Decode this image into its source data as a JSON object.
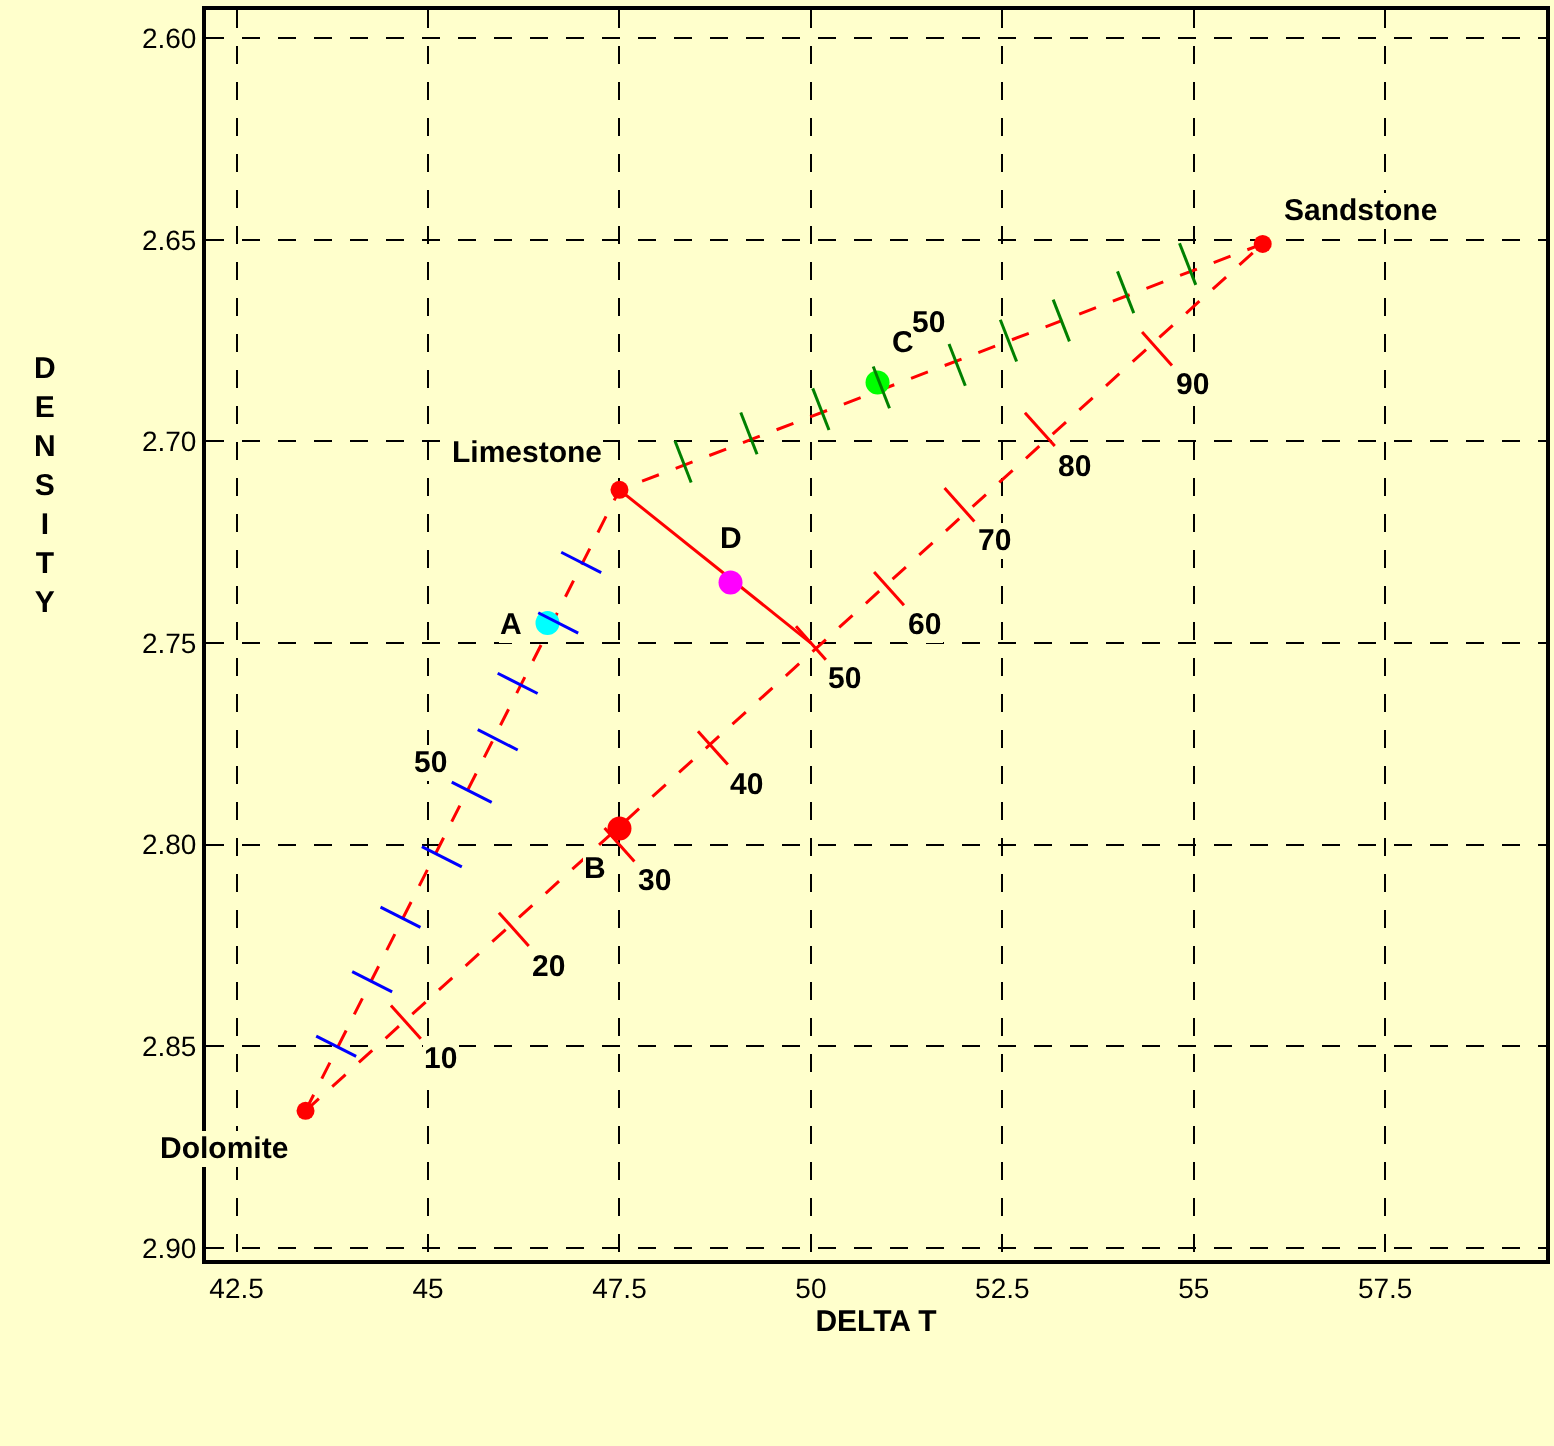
{
  "chart_data": {
    "type": "scatter",
    "xlabel": "DELTA T",
    "ylabel": "DENSITY",
    "xlim": [
      42.1,
      59.6
    ],
    "ylim": [
      2.903,
      2.593
    ],
    "xticks": [
      42.5,
      45,
      47.5,
      50,
      52.5,
      55,
      57.5
    ],
    "yticks": [
      {
        "value": 2.6,
        "label": "2.60"
      },
      {
        "value": 2.65,
        "label": "2.65"
      },
      {
        "value": 2.7,
        "label": "2.70"
      },
      {
        "value": 2.75,
        "label": "2.75"
      },
      {
        "value": 2.8,
        "label": "2.80"
      },
      {
        "value": 2.85,
        "label": "2.85"
      },
      {
        "value": 2.9,
        "label": "2.90"
      }
    ],
    "grid": true,
    "series": [
      {
        "type": "line",
        "color": "#ff0000",
        "line_style": "dashed",
        "marker": "none",
        "x": [
          43.4,
          55.9
        ],
        "values": [
          2.866,
          2.651
        ]
      },
      {
        "type": "line",
        "color": "#ff0000",
        "line_style": "dashed",
        "marker": "none",
        "x": [
          43.4,
          47.5,
          55.9
        ],
        "values": [
          2.866,
          2.712,
          2.651
        ]
      },
      {
        "type": "line",
        "color": "#ff0000",
        "line_style": "solid",
        "marker": "none",
        "x": [
          47.5,
          50.0
        ],
        "values": [
          2.712,
          2.75
        ]
      },
      {
        "color": "#ff0000",
        "marker": "circle",
        "x": [
          43.4,
          47.5,
          55.9
        ],
        "values": [
          2.866,
          2.712,
          2.651
        ]
      },
      {
        "marker": "circle",
        "colors": [
          "#00ffff",
          "#ff0000",
          "#00ff00",
          "#ff00ff"
        ],
        "x": [
          46.56,
          47.5,
          50.87,
          48.95
        ],
        "values": [
          2.745,
          2.796,
          2.6854,
          2.735
        ]
      },
      {
        "color": "#ff0000",
        "marker": "cross",
        "x": [
          44.71,
          46.12,
          47.5,
          48.72,
          50.0,
          51.02,
          51.94,
          52.99,
          54.52
        ],
        "values": [
          2.844,
          2.821,
          2.8,
          2.776,
          2.75,
          2.7365,
          2.7157,
          2.697,
          2.677
        ]
      },
      {
        "color": "#008000",
        "marker": "cross",
        "x": [
          48.33,
          49.19,
          50.13,
          50.92,
          51.91,
          52.58,
          53.27,
          54.11,
          54.92
        ],
        "values": [
          2.705,
          2.698,
          2.692,
          2.6866,
          2.681,
          2.675,
          2.67,
          2.663,
          2.656
        ]
      },
      {
        "color": "#0000ff",
        "marker": "cross",
        "x": [
          43.8,
          44.27,
          44.64,
          45.18,
          45.57,
          45.91,
          46.17,
          46.7,
          47.0
        ],
        "values": [
          2.85,
          2.834,
          2.818,
          2.803,
          2.787,
          2.774,
          2.76,
          2.745,
          2.73
        ]
      }
    ],
    "annotations": [
      {
        "text": "Dolomite",
        "x": 43.4,
        "y": 2.866
      },
      {
        "text": "Limestone",
        "x": 47.5,
        "y": 2.712
      },
      {
        "text": "Sandstone",
        "x": 55.9,
        "y": 2.651
      },
      {
        "text": "A",
        "x": 46.56,
        "y": 2.745
      },
      {
        "text": "B",
        "x": 47.5,
        "y": 2.796
      },
      {
        "text": "C",
        "x": 50.87,
        "y": 2.6854
      },
      {
        "text": "D",
        "x": 48.95,
        "y": 2.735
      },
      {
        "text": "10",
        "x": 44.71,
        "y": 2.844
      },
      {
        "text": "20",
        "x": 46.12,
        "y": 2.821
      },
      {
        "text": "30",
        "x": 47.5,
        "y": 2.8
      },
      {
        "text": "40",
        "x": 48.72,
        "y": 2.776
      },
      {
        "text": "50",
        "x": 50.0,
        "y": 2.75
      },
      {
        "text": "60",
        "x": 51.02,
        "y": 2.7365
      },
      {
        "text": "70",
        "x": 51.94,
        "y": 2.7157
      },
      {
        "text": "80",
        "x": 52.99,
        "y": 2.697
      },
      {
        "text": "90",
        "x": 54.52,
        "y": 2.677
      },
      {
        "text": "50",
        "x": 51.91,
        "y": 2.681
      },
      {
        "text": "50",
        "x": 45.57,
        "y": 2.787
      }
    ]
  }
}
